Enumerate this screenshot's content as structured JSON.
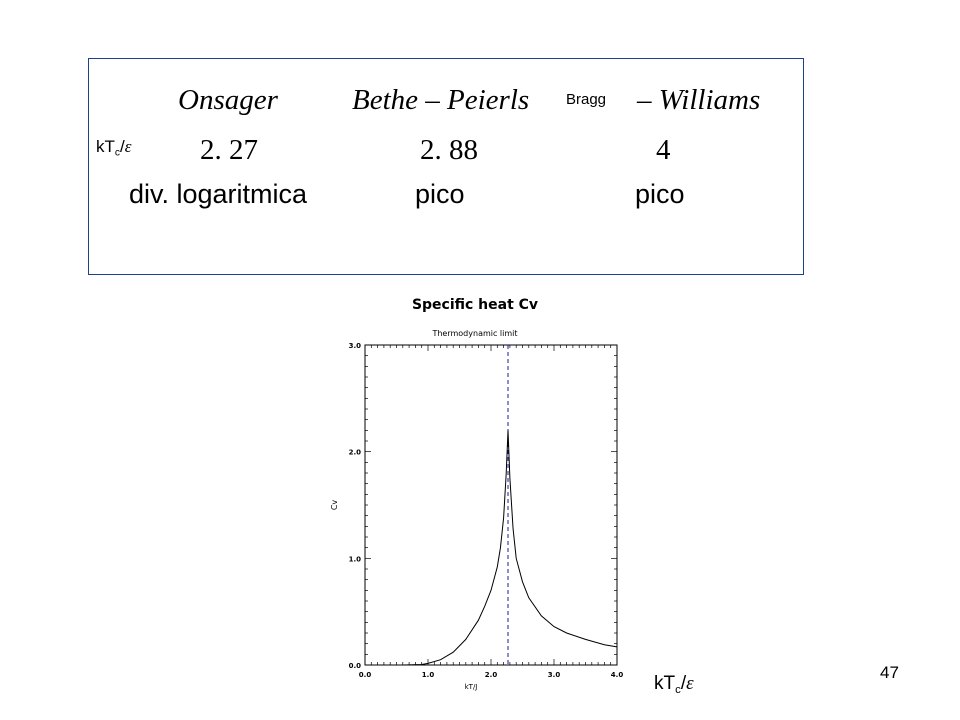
{
  "table": {
    "headers": {
      "onsager": "Onsager",
      "bethe_peierls": "Bethe – Peierls",
      "bragg": "Bragg",
      "williams": "– Williams"
    },
    "kt_label": {
      "k": "kT",
      "sub": "c",
      "slash": "/",
      "eps": "ε"
    },
    "values": [
      "2. 27",
      "2. 88",
      "4"
    ],
    "behaviors": [
      "div. logaritmica",
      "pico",
      "pico"
    ]
  },
  "axis_label_bottom": {
    "k": "kT",
    "sub": "c",
    "slash": "/",
    "eps": "ε"
  },
  "slide_number": "47",
  "chart_data": {
    "type": "line",
    "title": "Specific heat Cv",
    "subtitle": "Thermodynamic limit",
    "xlabel": "kT/J",
    "ylabel": "Cv",
    "xlim": [
      0.0,
      4.0
    ],
    "ylim": [
      0.0,
      3.0
    ],
    "xticks": [
      "0.0",
      "1.0",
      "2.0",
      "3.0",
      "4.0"
    ],
    "yticks": [
      "0.0",
      "1.0",
      "2.0",
      "3.0"
    ],
    "critical_line": {
      "x": 2.27,
      "style": "dashed",
      "color": "#1a1aa6"
    },
    "series": [
      {
        "color": "#000000",
        "points": [
          [
            0.0,
            0.0
          ],
          [
            0.6,
            0.0
          ],
          [
            0.9,
            0.005
          ],
          [
            1.0,
            0.015
          ],
          [
            1.2,
            0.05
          ],
          [
            1.4,
            0.12
          ],
          [
            1.6,
            0.24
          ],
          [
            1.8,
            0.42
          ],
          [
            1.9,
            0.55
          ],
          [
            2.0,
            0.7
          ],
          [
            2.1,
            0.92
          ],
          [
            2.15,
            1.1
          ],
          [
            2.2,
            1.38
          ],
          [
            2.24,
            1.78
          ],
          [
            2.27,
            2.2
          ],
          [
            2.3,
            1.75
          ],
          [
            2.35,
            1.28
          ],
          [
            2.4,
            1.0
          ],
          [
            2.5,
            0.78
          ],
          [
            2.6,
            0.63
          ],
          [
            2.8,
            0.46
          ],
          [
            3.0,
            0.36
          ],
          [
            3.2,
            0.3
          ],
          [
            3.5,
            0.24
          ],
          [
            3.8,
            0.19
          ],
          [
            4.0,
            0.17
          ]
        ]
      }
    ]
  }
}
